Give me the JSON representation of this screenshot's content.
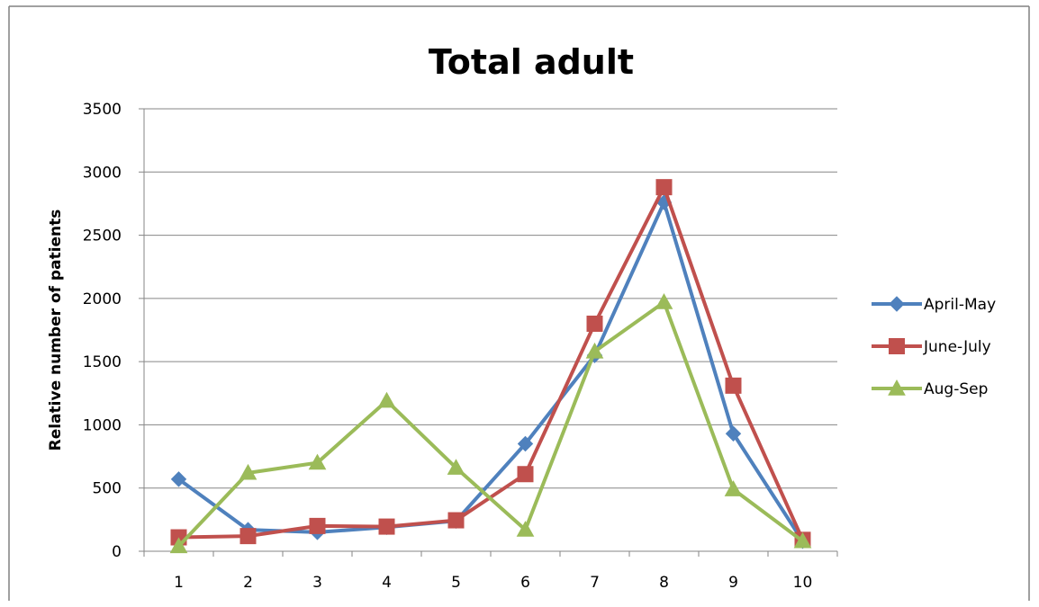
{
  "chart_data": {
    "type": "line",
    "title": "Total adult",
    "xlabel": "",
    "ylabel": "Relative number of patients",
    "categories": [
      "1",
      "2",
      "3",
      "4",
      "5",
      "6",
      "7",
      "8",
      "9",
      "10"
    ],
    "ylim": [
      0,
      3500
    ],
    "yticks": [
      0,
      500,
      1000,
      1500,
      2000,
      2500,
      3000,
      3500
    ],
    "grid": true,
    "legend_position": "right",
    "series": [
      {
        "name": "April-May",
        "color": "#4F81BD",
        "marker": "diamond",
        "values": [
          570,
          170,
          150,
          190,
          240,
          850,
          1550,
          2760,
          930,
          80
        ]
      },
      {
        "name": "June-July",
        "color": "#C0504D",
        "marker": "square",
        "values": [
          110,
          120,
          200,
          195,
          245,
          610,
          1800,
          2880,
          1310,
          90
        ]
      },
      {
        "name": "Aug-Sep",
        "color": "#9BBB59",
        "marker": "triangle",
        "values": [
          40,
          620,
          700,
          1190,
          660,
          170,
          1580,
          1970,
          490,
          80
        ]
      }
    ]
  }
}
